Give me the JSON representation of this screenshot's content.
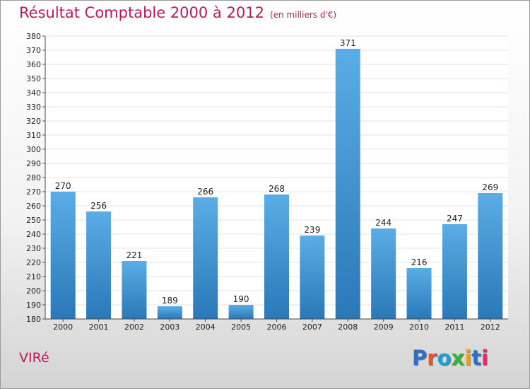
{
  "header": {
    "title": "Résultat Comptable 2000 à 2012",
    "subtitle": "(en milliers d'€)"
  },
  "footer": {
    "town": "VIRé",
    "logo_text": "Proxiti"
  },
  "colors": {
    "title": "#c2185b",
    "bar_top": "#5aade5",
    "bar_bottom": "#2a78b8",
    "grid": "#e3e3e3",
    "logo": [
      "#2f6fc0",
      "#e8542a",
      "#1aa0d8",
      "#35b23a",
      "#f0a020",
      "#2f6fc0",
      "#e02a6a"
    ]
  },
  "chart_data": {
    "type": "bar",
    "title": "Résultat Comptable 2000 à 2012",
    "subtitle": "(en milliers d'€)",
    "xlabel": "",
    "ylabel": "",
    "categories": [
      "2000",
      "2001",
      "2002",
      "2003",
      "2004",
      "2005",
      "2006",
      "2007",
      "2008",
      "2009",
      "2010",
      "2011",
      "2012"
    ],
    "values": [
      270,
      256,
      221,
      189,
      266,
      190,
      268,
      239,
      371,
      244,
      216,
      247,
      269
    ],
    "ylim": [
      180,
      380
    ],
    "ytick_step": 10,
    "grid": true,
    "legend": "none"
  }
}
